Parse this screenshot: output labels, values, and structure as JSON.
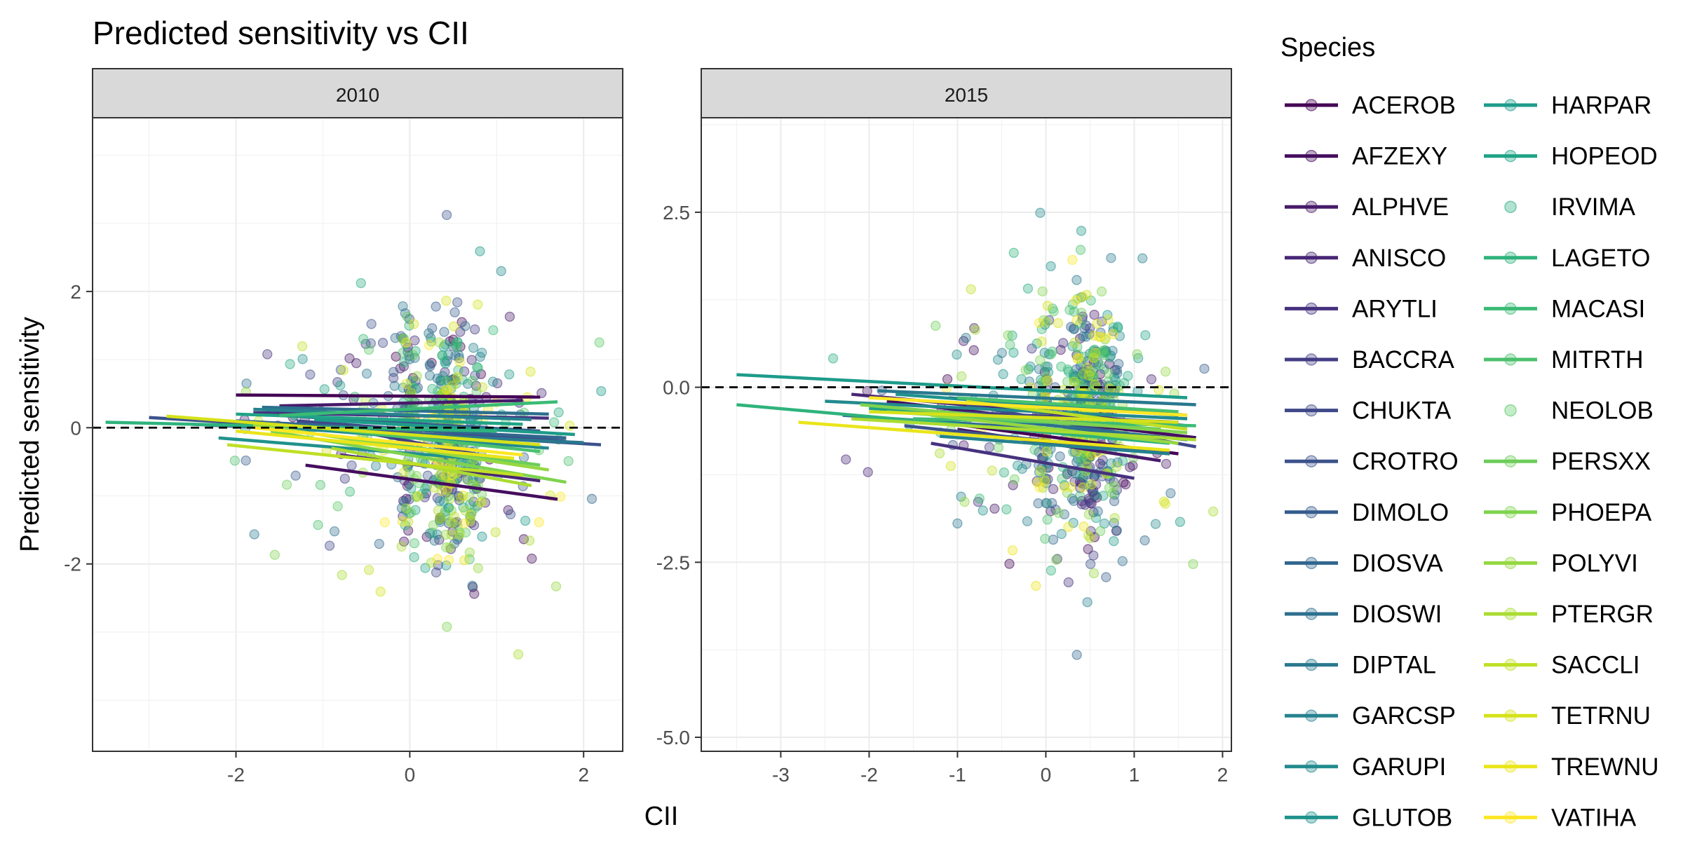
{
  "chart_data": {
    "type": "scatter",
    "title": "Predicted sensitivity vs CII",
    "xlabel": "CII",
    "ylabel": "Predicted sensitivity",
    "legend_title": "Species",
    "legend_position": "right",
    "grid": true,
    "reference_line_y": 0,
    "species": [
      {
        "name": "ACEROB",
        "color": "#440154",
        "marker": "line+point"
      },
      {
        "name": "AFZEXY",
        "color": "#450D5F",
        "marker": "line+point"
      },
      {
        "name": "ALPHVE",
        "color": "#471A6A",
        "marker": "line+point"
      },
      {
        "name": "ANISCO",
        "color": "#482675",
        "marker": "line+point"
      },
      {
        "name": "ARYTLI",
        "color": "#46317E",
        "marker": "line+point"
      },
      {
        "name": "BACCRA",
        "color": "#433D84",
        "marker": "line+point"
      },
      {
        "name": "CHUKTA",
        "color": "#3F4889",
        "marker": "line+point"
      },
      {
        "name": "CROTRO",
        "color": "#3B528B",
        "marker": "line+point"
      },
      {
        "name": "DIMOLO",
        "color": "#365C8D",
        "marker": "line+point"
      },
      {
        "name": "DIOSVA",
        "color": "#31668E",
        "marker": "line+point"
      },
      {
        "name": "DIOSWI",
        "color": "#2D6F8E",
        "marker": "line+point"
      },
      {
        "name": "DIPTAL",
        "color": "#29788E",
        "marker": "line+point"
      },
      {
        "name": "GARCSP",
        "color": "#26818E",
        "marker": "line+point"
      },
      {
        "name": "GARUPI",
        "color": "#228A8D",
        "marker": "line+point"
      },
      {
        "name": "GLUTOB",
        "color": "#1F928C",
        "marker": "line+point"
      },
      {
        "name": "HARPAR",
        "color": "#1E9B8A",
        "marker": "line+point"
      },
      {
        "name": "HOPEOD",
        "color": "#20A386",
        "marker": "line+point"
      },
      {
        "name": "IRVIMA",
        "color": "#26AC82",
        "marker": "point"
      },
      {
        "name": "LAGETO",
        "color": "#2EB37C",
        "marker": "line+point"
      },
      {
        "name": "MACASI",
        "color": "#3ABB75",
        "marker": "line+point"
      },
      {
        "name": "MITRTH",
        "color": "#4AC16D",
        "marker": "line+point"
      },
      {
        "name": "NEOLOB",
        "color": "#5AC864",
        "marker": "point"
      },
      {
        "name": "PERSXX",
        "color": "#6CCD5A",
        "marker": "line+point"
      },
      {
        "name": "PHOEPA",
        "color": "#7FD34E",
        "marker": "line+point"
      },
      {
        "name": "POLYVI",
        "color": "#95D840",
        "marker": "line+point"
      },
      {
        "name": "PTERGR",
        "color": "#AADC32",
        "marker": "line+point"
      },
      {
        "name": "SACCLI",
        "color": "#BFDF25",
        "marker": "line+point"
      },
      {
        "name": "TETRNU",
        "color": "#D5E21A",
        "marker": "line+point"
      },
      {
        "name": "TREWNU",
        "color": "#EAE51A",
        "marker": "line+point"
      },
      {
        "name": "VATIHA",
        "color": "#FDE725",
        "marker": "line+point"
      }
    ],
    "panels": [
      {
        "label": "2010",
        "xlim": [
          -3.65,
          2.45
        ],
        "ylim": [
          -4.75,
          4.55
        ],
        "xticks": [
          -2,
          0,
          2
        ],
        "xtick_labels": [
          "-2",
          "0",
          "2"
        ],
        "yticks": [
          -2,
          0,
          2
        ],
        "ytick_labels": [
          "-2",
          "0",
          "2"
        ],
        "fit_lines": [
          {
            "species": "ACEROB",
            "x": [
              -2.0,
              1.5
            ],
            "y": [
              0.48,
              0.45
            ]
          },
          {
            "species": "AFZEXY",
            "x": [
              -1.2,
              1.7
            ],
            "y": [
              -0.55,
              -1.05
            ]
          },
          {
            "species": "ALPHVE",
            "x": [
              -1.5,
              1.3
            ],
            "y": [
              0.32,
              0.4
            ]
          },
          {
            "species": "ANISCO",
            "x": [
              -0.8,
              1.5
            ],
            "y": [
              -0.4,
              -0.78
            ]
          },
          {
            "species": "ARYTLI",
            "x": [
              -1.8,
              1.6
            ],
            "y": [
              0.22,
              0.14
            ]
          },
          {
            "species": "BACCRA",
            "x": [
              -1.0,
              1.0
            ],
            "y": [
              0.05,
              -0.45
            ]
          },
          {
            "species": "CHUKTA",
            "x": [
              -1.3,
              1.8
            ],
            "y": [
              0.1,
              -0.2
            ]
          },
          {
            "species": "CROTRO",
            "x": [
              -3.0,
              2.2
            ],
            "y": [
              0.15,
              -0.25
            ]
          },
          {
            "species": "DIMOLO",
            "x": [
              -1.5,
              1.5
            ],
            "y": [
              0.18,
              -0.05
            ]
          },
          {
            "species": "DIOSVA",
            "x": [
              -2.0,
              1.8
            ],
            "y": [
              0.1,
              -0.15
            ]
          },
          {
            "species": "DIOSWI",
            "x": [
              -1.7,
              1.6
            ],
            "y": [
              0.3,
              0.2
            ]
          },
          {
            "species": "DIPTAL",
            "x": [
              -2.5,
              2.0
            ],
            "y": [
              0.05,
              -0.22
            ]
          },
          {
            "species": "GARCSP",
            "x": [
              -1.8,
              1.4
            ],
            "y": [
              0.27,
              0.12
            ]
          },
          {
            "species": "GARUPI",
            "x": [
              -1.4,
              1.6
            ],
            "y": [
              0.0,
              -0.3
            ]
          },
          {
            "species": "GLUTOB",
            "x": [
              -2.2,
              1.2
            ],
            "y": [
              -0.15,
              -0.5
            ]
          },
          {
            "species": "HARPAR",
            "x": [
              -1.1,
              1.9
            ],
            "y": [
              0.12,
              -0.1
            ]
          },
          {
            "species": "HOPEOD",
            "x": [
              -2.0,
              1.3
            ],
            "y": [
              0.2,
              0.05
            ]
          },
          {
            "species": "LAGETO",
            "x": [
              -3.5,
              1.0
            ],
            "y": [
              0.08,
              -0.05
            ]
          },
          {
            "species": "MACASI",
            "x": [
              -1.5,
              1.7
            ],
            "y": [
              0.18,
              0.38
            ]
          },
          {
            "species": "MITRTH",
            "x": [
              -1.2,
              1.5
            ],
            "y": [
              0.02,
              -0.35
            ]
          },
          {
            "species": "PERSXX",
            "x": [
              -1.0,
              1.5
            ],
            "y": [
              -0.1,
              -0.55
            ]
          },
          {
            "species": "PHOEPA",
            "x": [
              -1.6,
              1.8
            ],
            "y": [
              -0.05,
              -0.8
            ]
          },
          {
            "species": "POLYVI",
            "x": [
              -1.8,
              1.6
            ],
            "y": [
              0.05,
              -0.62
            ]
          },
          {
            "species": "PTERGR",
            "x": [
              -0.9,
              1.4
            ],
            "y": [
              -0.3,
              -0.85
            ]
          },
          {
            "species": "SACCLI",
            "x": [
              -2.1,
              1.3
            ],
            "y": [
              -0.25,
              -0.7
            ]
          },
          {
            "species": "TETRNU",
            "x": [
              -2.8,
              1.5
            ],
            "y": [
              0.17,
              -0.25
            ]
          },
          {
            "species": "TREWNU",
            "x": [
              -2.0,
              1.2
            ],
            "y": [
              -0.05,
              -0.45
            ]
          },
          {
            "species": "VATIHA",
            "x": [
              -1.8,
              1.3
            ],
            "y": [
              0.0,
              -0.4
            ]
          }
        ]
      },
      {
        "label": "2015",
        "xlim": [
          -3.9,
          2.1
        ],
        "ylim": [
          -5.2,
          3.85
        ],
        "xticks": [
          -3,
          -2,
          -1,
          0,
          1,
          2
        ],
        "xtick_labels": [
          "-3",
          "-2",
          "-1",
          "0",
          "1",
          "2"
        ],
        "yticks": [
          2.5,
          0.0,
          -2.5,
          -5.0
        ],
        "ytick_labels": [
          "2.5",
          "0.0",
          "-2.5",
          "-5.0"
        ],
        "fit_lines": [
          {
            "species": "ACEROB",
            "x": [
              -1.5,
              1.5
            ],
            "y": [
              -0.45,
              -0.95
            ]
          },
          {
            "species": "AFZEXY",
            "x": [
              -1.8,
              1.7
            ],
            "y": [
              -0.2,
              -0.72
            ]
          },
          {
            "species": "ALPHVE",
            "x": [
              -1.0,
              1.3
            ],
            "y": [
              -0.6,
              -1.05
            ]
          },
          {
            "species": "ANISCO",
            "x": [
              -2.2,
              1.6
            ],
            "y": [
              -0.1,
              -0.55
            ]
          },
          {
            "species": "ARYTLI",
            "x": [
              -1.3,
              1.0
            ],
            "y": [
              -0.8,
              -1.3
            ]
          },
          {
            "species": "BACCRA",
            "x": [
              -2.0,
              1.5
            ],
            "y": [
              -0.3,
              -0.5
            ]
          },
          {
            "species": "CHUKTA",
            "x": [
              -0.9,
              1.7
            ],
            "y": [
              -0.25,
              -0.85
            ]
          },
          {
            "species": "CROTRO",
            "x": [
              -1.6,
              1.4
            ],
            "y": [
              -0.55,
              -0.95
            ]
          },
          {
            "species": "DIMOLO",
            "x": [
              -1.1,
              1.6
            ],
            "y": [
              -0.15,
              -0.4
            ]
          },
          {
            "species": "DIOSVA",
            "x": [
              -2.3,
              1.2
            ],
            "y": [
              -0.4,
              -0.7
            ]
          },
          {
            "species": "DIOSWI",
            "x": [
              -1.4,
              1.6
            ],
            "y": [
              -0.35,
              -0.75
            ]
          },
          {
            "species": "DIPTAL",
            "x": [
              -1.9,
              1.7
            ],
            "y": [
              -0.05,
              -0.25
            ]
          },
          {
            "species": "GARCSP",
            "x": [
              -1.2,
              1.4
            ],
            "y": [
              -0.7,
              -0.95
            ]
          },
          {
            "species": "GARUPI",
            "x": [
              -2.5,
              1.6
            ],
            "y": [
              -0.2,
              -0.45
            ]
          },
          {
            "species": "GLUTOB",
            "x": [
              -1.7,
              1.5
            ],
            "y": [
              -0.1,
              -0.4
            ]
          },
          {
            "species": "HARPAR",
            "x": [
              -3.5,
              1.6
            ],
            "y": [
              0.18,
              -0.15
            ]
          },
          {
            "species": "HOPEOD",
            "x": [
              -2.0,
              1.3
            ],
            "y": [
              -0.3,
              -0.6
            ]
          },
          {
            "species": "LAGETO",
            "x": [
              -3.5,
              1.4
            ],
            "y": [
              -0.25,
              -0.8
            ]
          },
          {
            "species": "MACASI",
            "x": [
              -1.5,
              1.7
            ],
            "y": [
              -0.45,
              -0.55
            ]
          },
          {
            "species": "MITRTH",
            "x": [
              -1.0,
              1.5
            ],
            "y": [
              -0.15,
              -0.35
            ]
          },
          {
            "species": "PERSXX",
            "x": [
              -1.8,
              1.3
            ],
            "y": [
              -0.35,
              -0.6
            ]
          },
          {
            "species": "PHOEPA",
            "x": [
              -2.1,
              1.6
            ],
            "y": [
              -0.25,
              -0.65
            ]
          },
          {
            "species": "POLYVI",
            "x": [
              -1.3,
              1.5
            ],
            "y": [
              -0.4,
              -0.8
            ]
          },
          {
            "species": "PTERGR",
            "x": [
              -2.2,
              1.7
            ],
            "y": [
              -0.45,
              -0.75
            ]
          },
          {
            "species": "SACCLI",
            "x": [
              -0.9,
              1.6
            ],
            "y": [
              -0.2,
              -0.6
            ]
          },
          {
            "species": "TETRNU",
            "x": [
              -2.0,
              1.5
            ],
            "y": [
              -0.35,
              -0.5
            ]
          },
          {
            "species": "TREWNU",
            "x": [
              -2.8,
              1.4
            ],
            "y": [
              -0.5,
              -0.9
            ]
          },
          {
            "species": "VATIHA",
            "x": [
              -2.0,
              1.6
            ],
            "y": [
              -0.15,
              -0.4
            ]
          }
        ]
      }
    ]
  }
}
